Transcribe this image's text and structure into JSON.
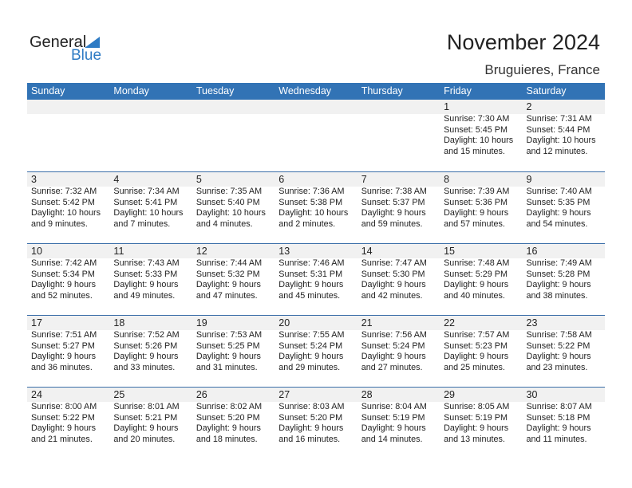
{
  "logo": {
    "word1": "General",
    "word2": "Blue",
    "accent": "#2e7bc4"
  },
  "title": "November 2024",
  "location": "Bruguieres, France",
  "header_color": "#3273b5",
  "days": [
    "Sunday",
    "Monday",
    "Tuesday",
    "Wednesday",
    "Thursday",
    "Friday",
    "Saturday"
  ],
  "weeks": [
    [
      null,
      null,
      null,
      null,
      null,
      {
        "day": "1",
        "sunrise": "Sunrise: 7:30 AM",
        "sunset": "Sunset: 5:45 PM",
        "daylight1": "Daylight: 10 hours",
        "daylight2": "and 15 minutes."
      },
      {
        "day": "2",
        "sunrise": "Sunrise: 7:31 AM",
        "sunset": "Sunset: 5:44 PM",
        "daylight1": "Daylight: 10 hours",
        "daylight2": "and 12 minutes."
      }
    ],
    [
      {
        "day": "3",
        "sunrise": "Sunrise: 7:32 AM",
        "sunset": "Sunset: 5:42 PM",
        "daylight1": "Daylight: 10 hours",
        "daylight2": "and 9 minutes."
      },
      {
        "day": "4",
        "sunrise": "Sunrise: 7:34 AM",
        "sunset": "Sunset: 5:41 PM",
        "daylight1": "Daylight: 10 hours",
        "daylight2": "and 7 minutes."
      },
      {
        "day": "5",
        "sunrise": "Sunrise: 7:35 AM",
        "sunset": "Sunset: 5:40 PM",
        "daylight1": "Daylight: 10 hours",
        "daylight2": "and 4 minutes."
      },
      {
        "day": "6",
        "sunrise": "Sunrise: 7:36 AM",
        "sunset": "Sunset: 5:38 PM",
        "daylight1": "Daylight: 10 hours",
        "daylight2": "and 2 minutes."
      },
      {
        "day": "7",
        "sunrise": "Sunrise: 7:38 AM",
        "sunset": "Sunset: 5:37 PM",
        "daylight1": "Daylight: 9 hours",
        "daylight2": "and 59 minutes."
      },
      {
        "day": "8",
        "sunrise": "Sunrise: 7:39 AM",
        "sunset": "Sunset: 5:36 PM",
        "daylight1": "Daylight: 9 hours",
        "daylight2": "and 57 minutes."
      },
      {
        "day": "9",
        "sunrise": "Sunrise: 7:40 AM",
        "sunset": "Sunset: 5:35 PM",
        "daylight1": "Daylight: 9 hours",
        "daylight2": "and 54 minutes."
      }
    ],
    [
      {
        "day": "10",
        "sunrise": "Sunrise: 7:42 AM",
        "sunset": "Sunset: 5:34 PM",
        "daylight1": "Daylight: 9 hours",
        "daylight2": "and 52 minutes."
      },
      {
        "day": "11",
        "sunrise": "Sunrise: 7:43 AM",
        "sunset": "Sunset: 5:33 PM",
        "daylight1": "Daylight: 9 hours",
        "daylight2": "and 49 minutes."
      },
      {
        "day": "12",
        "sunrise": "Sunrise: 7:44 AM",
        "sunset": "Sunset: 5:32 PM",
        "daylight1": "Daylight: 9 hours",
        "daylight2": "and 47 minutes."
      },
      {
        "day": "13",
        "sunrise": "Sunrise: 7:46 AM",
        "sunset": "Sunset: 5:31 PM",
        "daylight1": "Daylight: 9 hours",
        "daylight2": "and 45 minutes."
      },
      {
        "day": "14",
        "sunrise": "Sunrise: 7:47 AM",
        "sunset": "Sunset: 5:30 PM",
        "daylight1": "Daylight: 9 hours",
        "daylight2": "and 42 minutes."
      },
      {
        "day": "15",
        "sunrise": "Sunrise: 7:48 AM",
        "sunset": "Sunset: 5:29 PM",
        "daylight1": "Daylight: 9 hours",
        "daylight2": "and 40 minutes."
      },
      {
        "day": "16",
        "sunrise": "Sunrise: 7:49 AM",
        "sunset": "Sunset: 5:28 PM",
        "daylight1": "Daylight: 9 hours",
        "daylight2": "and 38 minutes."
      }
    ],
    [
      {
        "day": "17",
        "sunrise": "Sunrise: 7:51 AM",
        "sunset": "Sunset: 5:27 PM",
        "daylight1": "Daylight: 9 hours",
        "daylight2": "and 36 minutes."
      },
      {
        "day": "18",
        "sunrise": "Sunrise: 7:52 AM",
        "sunset": "Sunset: 5:26 PM",
        "daylight1": "Daylight: 9 hours",
        "daylight2": "and 33 minutes."
      },
      {
        "day": "19",
        "sunrise": "Sunrise: 7:53 AM",
        "sunset": "Sunset: 5:25 PM",
        "daylight1": "Daylight: 9 hours",
        "daylight2": "and 31 minutes."
      },
      {
        "day": "20",
        "sunrise": "Sunrise: 7:55 AM",
        "sunset": "Sunset: 5:24 PM",
        "daylight1": "Daylight: 9 hours",
        "daylight2": "and 29 minutes."
      },
      {
        "day": "21",
        "sunrise": "Sunrise: 7:56 AM",
        "sunset": "Sunset: 5:24 PM",
        "daylight1": "Daylight: 9 hours",
        "daylight2": "and 27 minutes."
      },
      {
        "day": "22",
        "sunrise": "Sunrise: 7:57 AM",
        "sunset": "Sunset: 5:23 PM",
        "daylight1": "Daylight: 9 hours",
        "daylight2": "and 25 minutes."
      },
      {
        "day": "23",
        "sunrise": "Sunrise: 7:58 AM",
        "sunset": "Sunset: 5:22 PM",
        "daylight1": "Daylight: 9 hours",
        "daylight2": "and 23 minutes."
      }
    ],
    [
      {
        "day": "24",
        "sunrise": "Sunrise: 8:00 AM",
        "sunset": "Sunset: 5:22 PM",
        "daylight1": "Daylight: 9 hours",
        "daylight2": "and 21 minutes."
      },
      {
        "day": "25",
        "sunrise": "Sunrise: 8:01 AM",
        "sunset": "Sunset: 5:21 PM",
        "daylight1": "Daylight: 9 hours",
        "daylight2": "and 20 minutes."
      },
      {
        "day": "26",
        "sunrise": "Sunrise: 8:02 AM",
        "sunset": "Sunset: 5:20 PM",
        "daylight1": "Daylight: 9 hours",
        "daylight2": "and 18 minutes."
      },
      {
        "day": "27",
        "sunrise": "Sunrise: 8:03 AM",
        "sunset": "Sunset: 5:20 PM",
        "daylight1": "Daylight: 9 hours",
        "daylight2": "and 16 minutes."
      },
      {
        "day": "28",
        "sunrise": "Sunrise: 8:04 AM",
        "sunset": "Sunset: 5:19 PM",
        "daylight1": "Daylight: 9 hours",
        "daylight2": "and 14 minutes."
      },
      {
        "day": "29",
        "sunrise": "Sunrise: 8:05 AM",
        "sunset": "Sunset: 5:19 PM",
        "daylight1": "Daylight: 9 hours",
        "daylight2": "and 13 minutes."
      },
      {
        "day": "30",
        "sunrise": "Sunrise: 8:07 AM",
        "sunset": "Sunset: 5:18 PM",
        "daylight1": "Daylight: 9 hours",
        "daylight2": "and 11 minutes."
      }
    ]
  ]
}
